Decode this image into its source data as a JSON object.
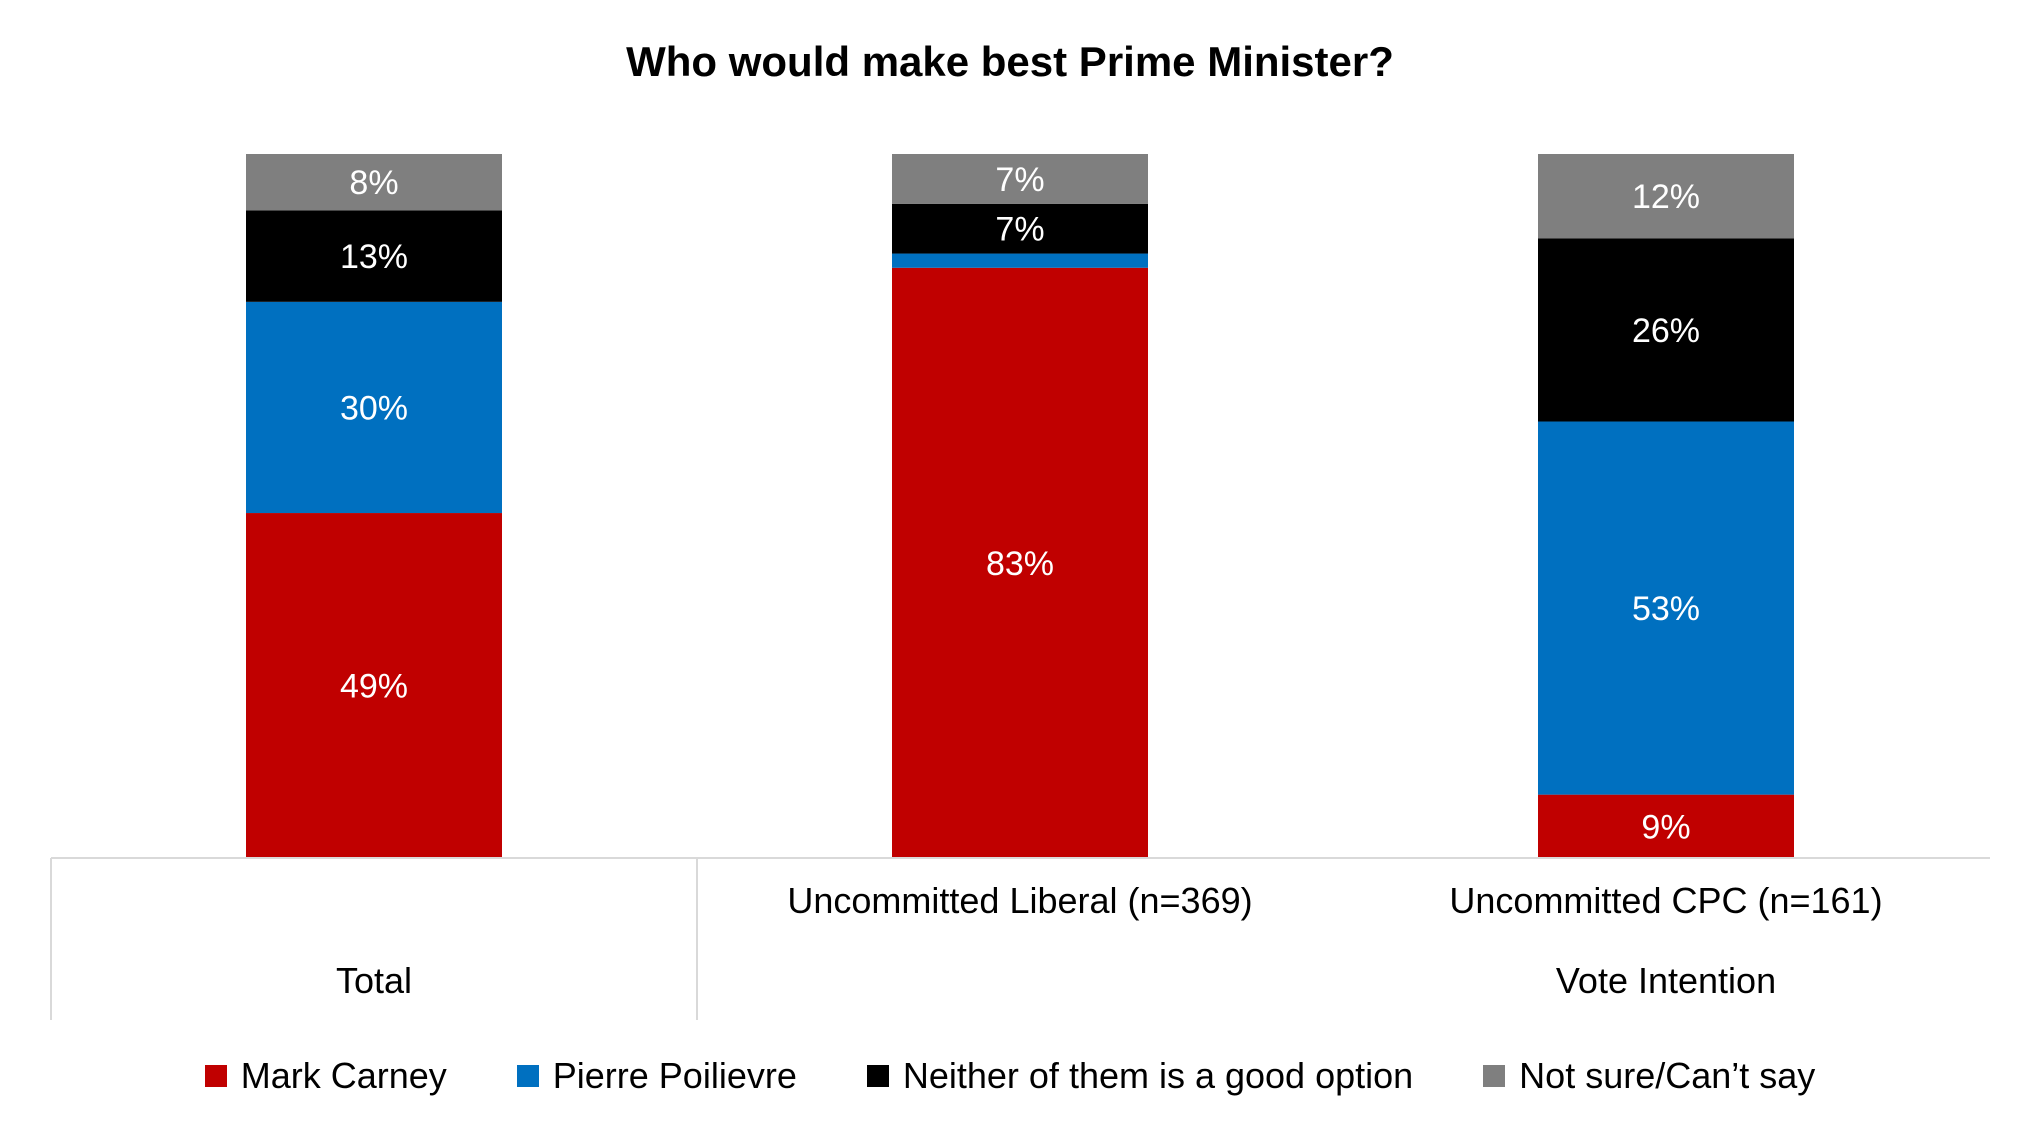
{
  "chart_data": {
    "type": "bar",
    "stacked": true,
    "title": "Who would make best Prime Minister?",
    "xlabel": "",
    "ylabel": "",
    "ylim": [
      0,
      100
    ],
    "grid": false,
    "legend_position": "bottom",
    "categories": [
      "Total",
      "Uncommitted Liberal (n=369)",
      "Uncommitted CPC (n=161)"
    ],
    "category_groups": [
      {
        "label": "",
        "categories": [
          "Total"
        ]
      },
      {
        "label": "Vote Intention",
        "categories": [
          "Uncommitted Liberal (n=369)",
          "Uncommitted CPC (n=161)"
        ]
      }
    ],
    "series": [
      {
        "name": "Mark Carney",
        "color": "#C00000",
        "values": [
          49,
          83,
          9
        ],
        "labels": [
          "49%",
          "83%",
          "9%"
        ]
      },
      {
        "name": "Pierre Poilievre",
        "color": "#0070C0",
        "values": [
          30,
          2,
          53
        ],
        "labels": [
          "30%",
          "",
          "53%"
        ]
      },
      {
        "name": "Neither of them is a good option",
        "color": "#000000",
        "values": [
          13,
          7,
          26
        ],
        "labels": [
          "13%",
          "7%",
          "26%"
        ]
      },
      {
        "name": "Not sure/Can’t say",
        "color": "#7F7F7F",
        "values": [
          8,
          7,
          12
        ],
        "labels": [
          "8%",
          "7%",
          "12%"
        ]
      }
    ]
  }
}
